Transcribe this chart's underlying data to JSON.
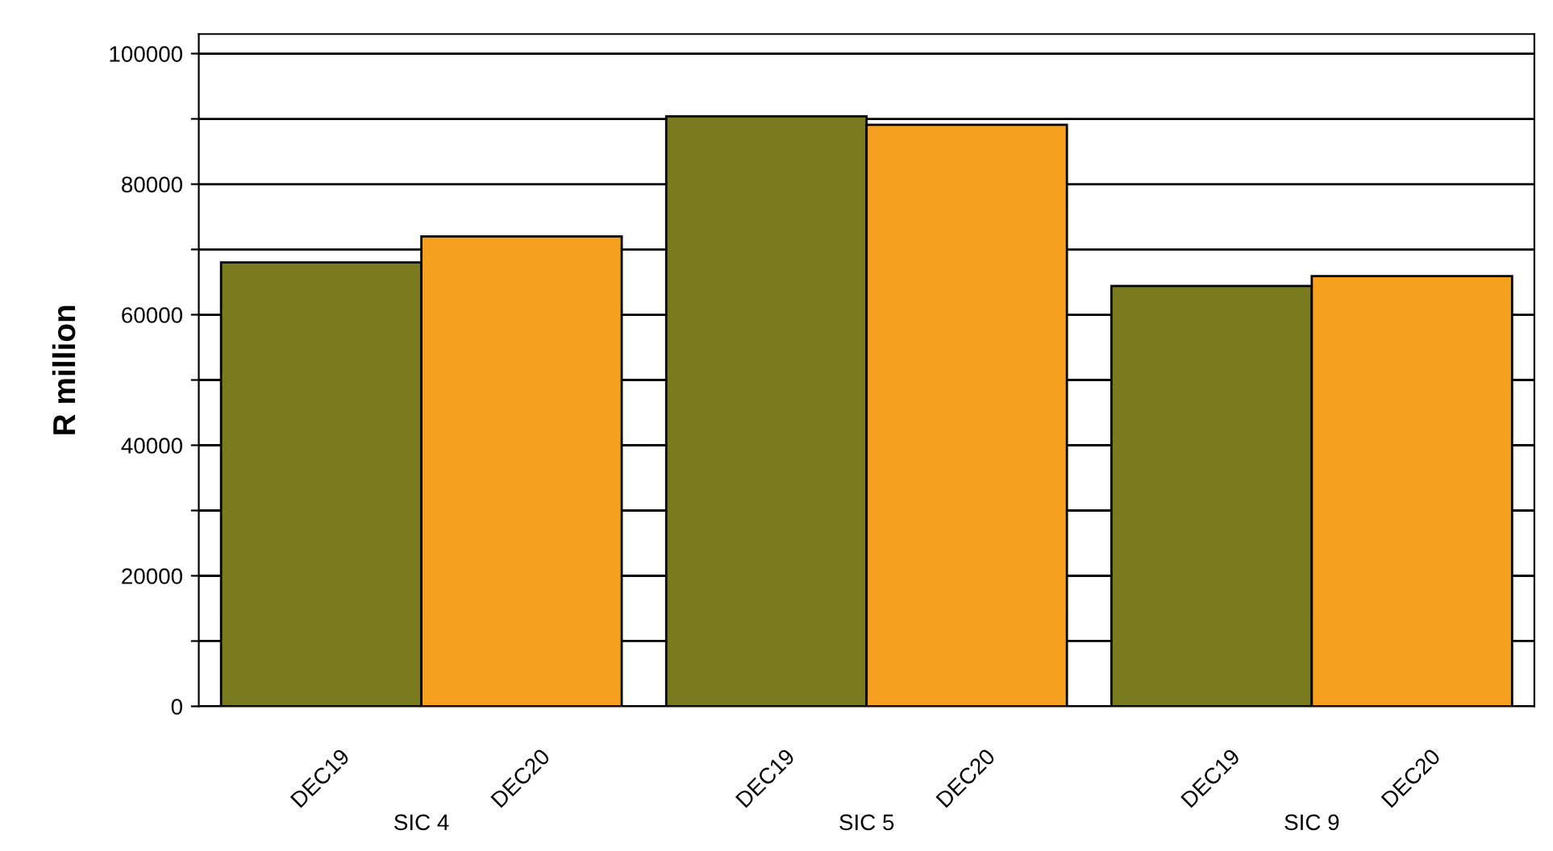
{
  "chart_data": {
    "type": "bar",
    "ylabel": "R million",
    "categories": [
      "SIC 4",
      "SIC 5",
      "SIC 9"
    ],
    "series": [
      {
        "name": "DEC19",
        "color": "#7a7a1e",
        "values": [
          68000,
          90400,
          64400
        ]
      },
      {
        "name": "DEC20",
        "color": "#f5a01e",
        "values": [
          72000,
          89100,
          65900
        ]
      }
    ],
    "ylim": [
      0,
      103000
    ],
    "yticks": [
      0,
      {
        "value": 10000,
        "label": null
      },
      20000,
      {
        "value": 30000,
        "label": null
      },
      40000,
      {
        "value": 50000,
        "label": null
      },
      60000,
      {
        "value": 70000,
        "label": null
      },
      80000,
      {
        "value": 90000,
        "label": null
      },
      100000
    ],
    "grid": "y",
    "legend": false
  }
}
